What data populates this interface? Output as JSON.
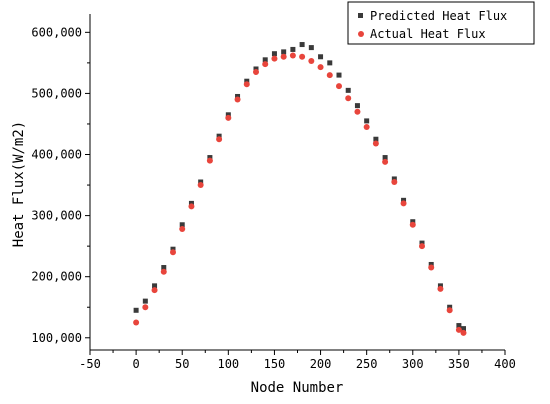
{
  "chart_data": {
    "type": "scatter",
    "title": "",
    "xlabel": "Node Number",
    "ylabel": "Heat Flux(W/m2)",
    "xlim": [
      -50,
      400
    ],
    "ylim": [
      80000,
      630000
    ],
    "x_ticks": [
      -50,
      0,
      50,
      100,
      150,
      200,
      250,
      300,
      350,
      400
    ],
    "y_ticks": [
      100000,
      200000,
      300000,
      400000,
      500000,
      600000
    ],
    "x_tick_labels": [
      "-50",
      "0",
      "50",
      "100",
      "150",
      "200",
      "250",
      "300",
      "350",
      "400"
    ],
    "y_tick_labels": [
      "100,000",
      "200,000",
      "300,000",
      "400,000",
      "500,000",
      "600,000"
    ],
    "grid": false,
    "legend_position": "top-right",
    "series": [
      {
        "name": "Predicted Heat Flux",
        "marker": "square",
        "color": "#3a3a3a",
        "x": [
          0,
          10,
          20,
          30,
          40,
          50,
          60,
          70,
          80,
          90,
          100,
          110,
          120,
          130,
          140,
          150,
          160,
          170,
          180,
          190,
          200,
          210,
          220,
          230,
          240,
          250,
          260,
          270,
          280,
          290,
          300,
          310,
          320,
          330,
          340,
          350,
          355
        ],
        "y": [
          145000,
          160000,
          185000,
          215000,
          245000,
          285000,
          320000,
          355000,
          395000,
          430000,
          465000,
          495000,
          520000,
          540000,
          555000,
          565000,
          568000,
          572000,
          580000,
          575000,
          560000,
          550000,
          530000,
          505000,
          480000,
          455000,
          425000,
          395000,
          360000,
          325000,
          290000,
          255000,
          220000,
          185000,
          150000,
          120000,
          115000
        ]
      },
      {
        "name": "Actual Heat Flux",
        "marker": "circle",
        "color": "#e8453c",
        "x": [
          0,
          10,
          20,
          30,
          40,
          50,
          60,
          70,
          80,
          90,
          100,
          110,
          120,
          130,
          140,
          150,
          160,
          170,
          180,
          190,
          200,
          210,
          220,
          230,
          240,
          250,
          260,
          270,
          280,
          290,
          300,
          310,
          320,
          330,
          340,
          350,
          355
        ],
        "y": [
          125000,
          150000,
          178000,
          208000,
          240000,
          278000,
          315000,
          350000,
          390000,
          425000,
          460000,
          490000,
          515000,
          535000,
          548000,
          557000,
          560000,
          562000,
          560000,
          553000,
          543000,
          530000,
          512000,
          492000,
          470000,
          445000,
          418000,
          388000,
          355000,
          320000,
          285000,
          250000,
          215000,
          180000,
          145000,
          113000,
          108000
        ]
      }
    ]
  },
  "colors": {
    "axis": "#000000",
    "background": "#ffffff"
  }
}
